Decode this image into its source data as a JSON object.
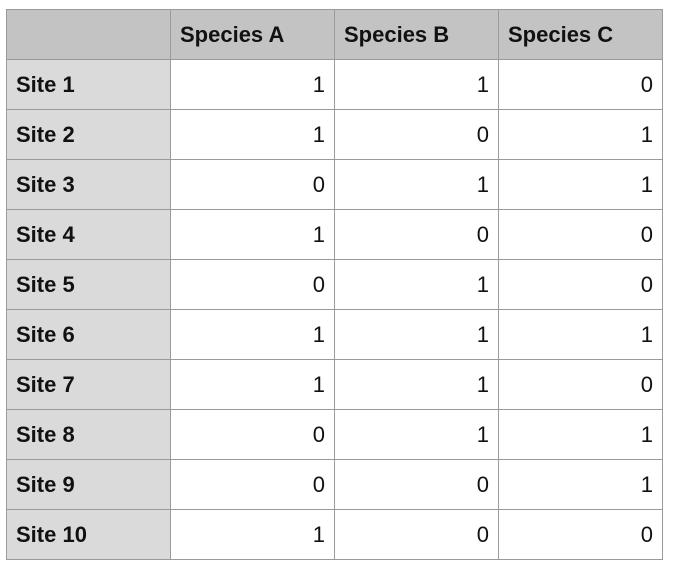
{
  "table": {
    "columns": [
      "Species A",
      "Species B",
      "Species C"
    ],
    "rows": [
      {
        "label": "Site 1",
        "values": [
          1,
          1,
          0
        ]
      },
      {
        "label": "Site 2",
        "values": [
          1,
          0,
          1
        ]
      },
      {
        "label": "Site 3",
        "values": [
          0,
          1,
          1
        ]
      },
      {
        "label": "Site 4",
        "values": [
          1,
          0,
          0
        ]
      },
      {
        "label": "Site 5",
        "values": [
          0,
          1,
          0
        ]
      },
      {
        "label": "Site 6",
        "values": [
          1,
          1,
          1
        ]
      },
      {
        "label": "Site 7",
        "values": [
          1,
          1,
          0
        ]
      },
      {
        "label": "Site 8",
        "values": [
          0,
          1,
          1
        ]
      },
      {
        "label": "Site 9",
        "values": [
          0,
          0,
          1
        ]
      },
      {
        "label": "Site 10",
        "values": [
          1,
          0,
          0
        ]
      }
    ]
  }
}
